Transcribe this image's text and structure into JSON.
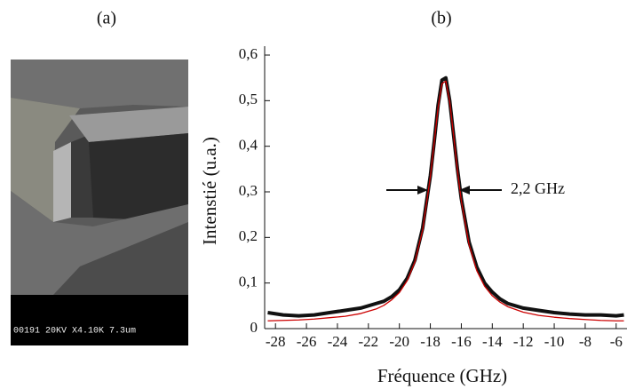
{
  "panel_a": {
    "label": "(a)",
    "image_text": "00191 20KV X4.10K 7.3um"
  },
  "chart_data": {
    "type": "line",
    "panel_label": "(b)",
    "xlabel": "Fréquence (GHz)",
    "ylabel": "Intenstié (u.a.)",
    "annotation": "2,2 GHz",
    "x": [
      -28.5,
      -27.5,
      -26.5,
      -25.5,
      -24.5,
      -23.5,
      -22.5,
      -21.5,
      -21,
      -20.5,
      -20,
      -19.5,
      -19,
      -18.5,
      -18,
      -17.75,
      -17.5,
      -17.25,
      -17,
      -16.75,
      -16.5,
      -16.25,
      -16,
      -15.5,
      -15,
      -14.5,
      -14,
      -13.5,
      -13,
      -12,
      -11,
      -10,
      -9,
      -8,
      -7,
      -6,
      -5.5
    ],
    "series": [
      {
        "color": "#111111",
        "values": [
          0.035,
          0.03,
          0.028,
          0.03,
          0.035,
          0.04,
          0.045,
          0.055,
          0.06,
          0.07,
          0.085,
          0.11,
          0.15,
          0.22,
          0.335,
          0.41,
          0.49,
          0.545,
          0.55,
          0.5,
          0.425,
          0.35,
          0.285,
          0.19,
          0.135,
          0.1,
          0.08,
          0.065,
          0.055,
          0.045,
          0.04,
          0.035,
          0.032,
          0.03,
          0.03,
          0.028,
          0.03
        ]
      },
      {
        "color": "#cc0000",
        "values": [
          0.017,
          0.018,
          0.019,
          0.021,
          0.024,
          0.027,
          0.033,
          0.043,
          0.051,
          0.063,
          0.079,
          0.105,
          0.146,
          0.216,
          0.333,
          0.409,
          0.485,
          0.537,
          0.543,
          0.498,
          0.424,
          0.347,
          0.28,
          0.184,
          0.127,
          0.093,
          0.072,
          0.058,
          0.048,
          0.036,
          0.029,
          0.025,
          0.022,
          0.02,
          0.018,
          0.017,
          0.017
        ]
      }
    ],
    "xlim": [
      -28.7,
      -5.3
    ],
    "ylim": [
      0,
      0.6
    ],
    "xticks": [
      -28,
      -26,
      -24,
      -22,
      -20,
      -18,
      -16,
      -14,
      -12,
      -10,
      -8,
      -6
    ],
    "yticks": [
      0,
      {
        "value": 0.1,
        "label": "0,1"
      },
      {
        "value": 0.2,
        "label": "0,2"
      },
      {
        "value": 0.3,
        "label": "0,3"
      },
      {
        "value": 0.4,
        "label": "0,4"
      },
      {
        "value": 0.5,
        "label": "0,5"
      },
      {
        "value": 0.6,
        "label": "0,6"
      }
    ]
  }
}
